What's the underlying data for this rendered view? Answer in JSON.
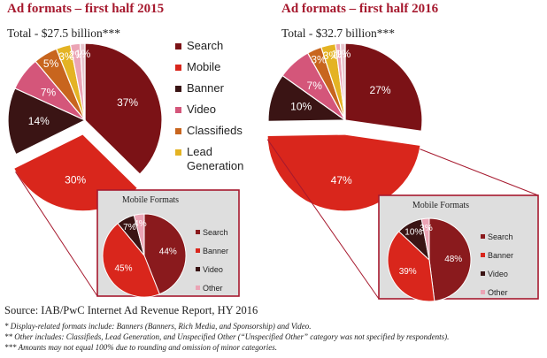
{
  "colors": {
    "Search": "#7b1216",
    "Mobile": "#d9261c",
    "Banner": "#3a1414",
    "Video": "#d4567a",
    "Classifieds": "#c8651e",
    "Lead Generation": "#e4b323",
    "Other": "#eba4b5",
    "MobileSearch": "#8a1a1d",
    "MobileBanner": "#d9261c",
    "MobileVideo": "#3a1414",
    "MobileOther": "#eba4b5",
    "accent": "#a6192e",
    "inset_bg": "#dedede"
  },
  "legend": {
    "items": [
      "Search",
      "Mobile",
      "Banner",
      "Video",
      "Classifieds",
      "Lead Generation"
    ],
    "lead_line1": "Lead",
    "lead_line2": "Generation"
  },
  "inset_legend": [
    "Search",
    "Banner",
    "Video",
    "Other"
  ],
  "chart_data": [
    {
      "type": "pie",
      "title": "Ad formats – first half 2015",
      "subtitle": "Total - $27.5 billion***",
      "slices": [
        {
          "name": "Search",
          "value": 37,
          "label": "37%"
        },
        {
          "name": "Mobile",
          "value": 30,
          "label": "30%"
        },
        {
          "name": "Banner",
          "value": 14,
          "label": "14%"
        },
        {
          "name": "Video",
          "value": 7,
          "label": "7%"
        },
        {
          "name": "Classifieds",
          "value": 5,
          "label": "5%"
        },
        {
          "name": "Lead Generation",
          "value": 3,
          "label": "3%"
        },
        {
          "name": "Other",
          "value": 2,
          "label": "2%"
        },
        {
          "name": "Unspecified",
          "value": 1,
          "label": "1%"
        }
      ],
      "exploded": "Mobile",
      "inset": {
        "title": "Mobile Formats",
        "slices": [
          {
            "name": "Search",
            "value": 44,
            "label": "44%"
          },
          {
            "name": "Banner",
            "value": 45,
            "label": "45%"
          },
          {
            "name": "Video",
            "value": 7,
            "label": "7%"
          },
          {
            "name": "Other",
            "value": 4,
            "label": "4%"
          }
        ]
      }
    },
    {
      "type": "pie",
      "title": "Ad formats – first half 2016",
      "subtitle": "Total - $32.7 billion***",
      "slices": [
        {
          "name": "Search",
          "value": 27,
          "label": "27%"
        },
        {
          "name": "Mobile",
          "value": 47,
          "label": "47%"
        },
        {
          "name": "Banner",
          "value": 10,
          "label": "10%"
        },
        {
          "name": "Video",
          "value": 7,
          "label": "7%"
        },
        {
          "name": "Classifieds",
          "value": 3,
          "label": "3%"
        },
        {
          "name": "Lead Generation",
          "value": 3,
          "label": "3%"
        },
        {
          "name": "Other",
          "value": 1,
          "label": "1%"
        },
        {
          "name": "Unspecified",
          "value": 1,
          "label": "1%"
        }
      ],
      "exploded": "Mobile",
      "inset": {
        "title": "Mobile Formats",
        "slices": [
          {
            "name": "Search",
            "value": 48,
            "label": "48%"
          },
          {
            "name": "Banner",
            "value": 39,
            "label": "39%"
          },
          {
            "name": "Video",
            "value": 10,
            "label": "10%"
          },
          {
            "name": "Other",
            "value": 3,
            "label": "3%"
          }
        ]
      }
    }
  ],
  "source": "Source: IAB/PwC Internet Ad Revenue Report, HY 2016",
  "footnotes": [
    "* Display-related formats include: Banners (Banners, Rich Media, and Sponsorship) and Video.",
    "** Other includes: Classifieds, Lead Generation, and Unspecified Other (“Unspecified Other” category was not specified by respondents).",
    "*** Amounts may not equal 100% due to rounding and omission of minor categories."
  ]
}
